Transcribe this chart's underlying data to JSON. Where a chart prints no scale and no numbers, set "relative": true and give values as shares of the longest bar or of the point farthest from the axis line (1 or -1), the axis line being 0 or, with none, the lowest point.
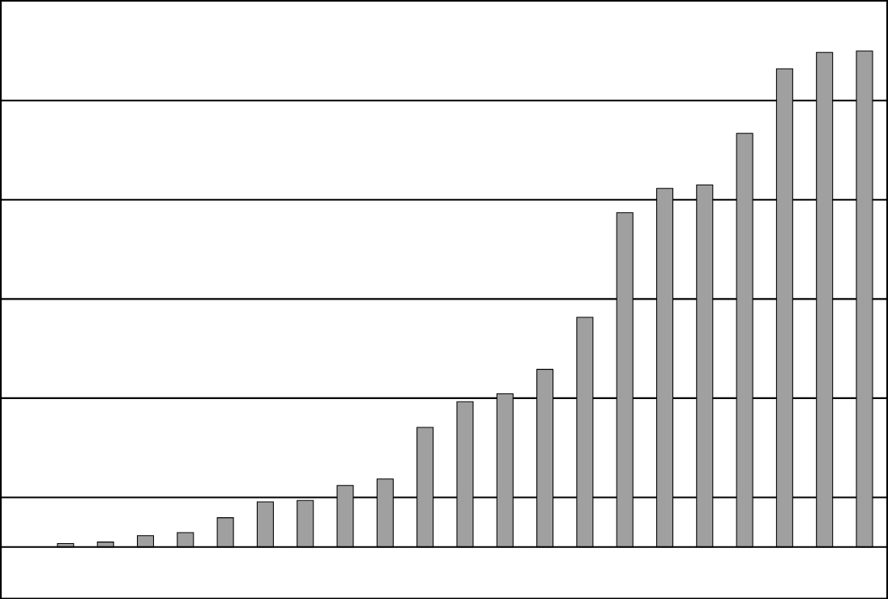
{
  "chart_data": {
    "type": "bar",
    "relative": true,
    "grid": "y",
    "color": "#a0a0a0",
    "categories": [
      null,
      null,
      null,
      null,
      null,
      null,
      null,
      null,
      null,
      null,
      null,
      null,
      null,
      null,
      null,
      null,
      null,
      null,
      null,
      null,
      null
    ],
    "values": [
      0.007,
      0.01,
      0.023,
      0.029,
      0.059,
      0.091,
      0.094,
      0.124,
      0.137,
      0.241,
      0.293,
      0.309,
      0.358,
      0.463,
      0.674,
      0.723,
      0.73,
      0.834,
      0.964,
      0.997,
      1
    ]
  }
}
